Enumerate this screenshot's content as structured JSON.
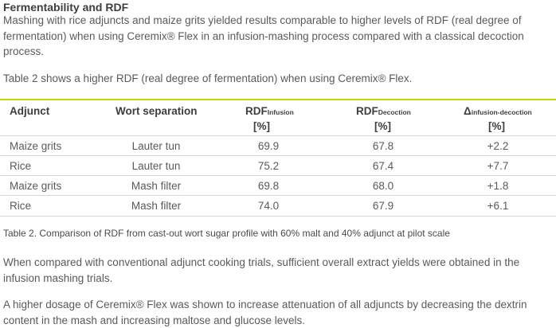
{
  "heading": "Fermentability and RDF",
  "para1": "Mashing with rice adjuncts and maize grits yielded results comparable to higher levels of RDF (real degree of fermentation) when using Ceremix® Flex in an infusion-mashing process compared with a classical decoction process.",
  "para2": "Table 2 shows a higher RDF (real degree of fermentation) when using Ceremix® Flex.",
  "table": {
    "headers": {
      "adjunct": "Adjunct",
      "wort": "Wort separation",
      "rdf_inf_main": "RDF",
      "rdf_inf_sub": "Infusion",
      "rdf_inf_unit": "[%]",
      "rdf_dec_main": "RDF",
      "rdf_dec_sub": "Decoction",
      "rdf_dec_unit": "[%]",
      "delta_main": "Δ",
      "delta_sub": "infusion-decoction",
      "delta_unit": "[%]"
    },
    "rows": [
      {
        "adjunct": "Maize grits",
        "wort": "Lauter tun",
        "rdf_inf": "69.9",
        "rdf_dec": "67.8",
        "delta": "+2.2"
      },
      {
        "adjunct": "Rice",
        "wort": "Lauter tun",
        "rdf_inf": "75.2",
        "rdf_dec": "67.4",
        "delta": "+7.7"
      },
      {
        "adjunct": "Maize grits",
        "wort": "Mash filter",
        "rdf_inf": "69.8",
        "rdf_dec": "68.0",
        "delta": "+1.8"
      },
      {
        "adjunct": "Rice",
        "wort": "Mash filter",
        "rdf_inf": "74.0",
        "rdf_dec": "67.9",
        "delta": "+6.1"
      }
    ],
    "caption": "Table 2. Comparison of RDF from cast-out wort sugar profile with 60% malt and 40% adjunct at pilot scale"
  },
  "para3": "When compared with conventional adjunct cooking trials, sufficient overall extract yields were obtained in the infusion mashing trials.",
  "para4": "A higher dosage of Ceremix® Flex was shown to increase attenuation of all adjuncts by decreasing the dextrin content in the mash and increasing maltose and glucose levels."
}
